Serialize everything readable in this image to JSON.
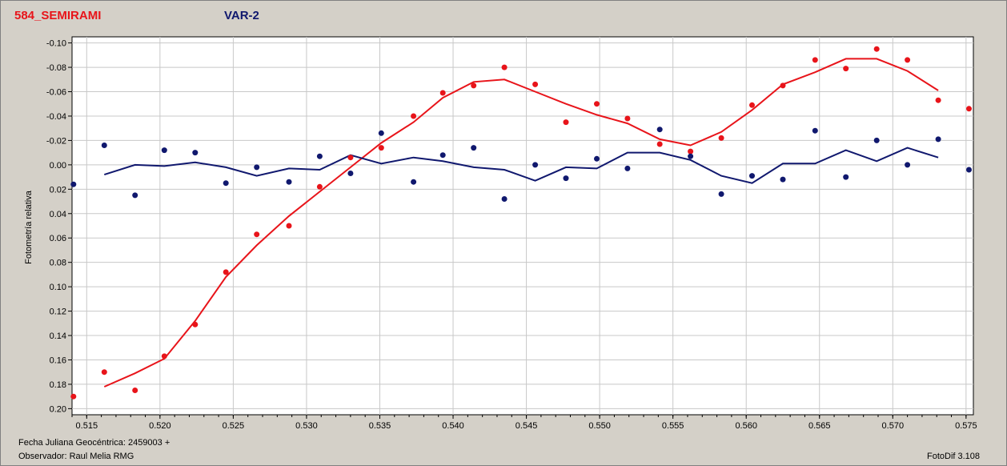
{
  "header": {
    "object_name": "584_SEMIRAMI",
    "comparison_name": "VAR-2"
  },
  "footer": {
    "jd_label": "Fecha Juliana Geocéntrica: 2459003 +",
    "observer_label": "Observador: Raul Melia RMG",
    "software": "FotoDif 3.108"
  },
  "colors": {
    "object": "#e8141a",
    "comparison": "#10186e",
    "background": "#d4d0c8",
    "plot_bg": "#ffffff",
    "grid": "#c8c8c8"
  },
  "chart_data": {
    "type": "scatter",
    "title": "",
    "xlabel": "",
    "ylabel": "Fotometría relativa",
    "xlim": [
      0.514,
      0.5755
    ],
    "ylim": [
      -0.105,
      0.205
    ],
    "y_inverted": true,
    "grid": true,
    "xticks": [
      0.515,
      0.52,
      0.525,
      0.53,
      0.535,
      0.54,
      0.545,
      0.55,
      0.555,
      0.56,
      0.565,
      0.57,
      0.575
    ],
    "xtick_labels": [
      "0.515",
      "0.520",
      "0.525",
      "0.530",
      "0.535",
      "0.540",
      "0.545",
      "0.550",
      "0.555",
      "0.560",
      "0.565",
      "0.570",
      "0.575"
    ],
    "yticks": [
      -0.1,
      -0.08,
      -0.06,
      -0.04,
      -0.02,
      0,
      0.02,
      0.04,
      0.06,
      0.08,
      0.1,
      0.12,
      0.14,
      0.16,
      0.18,
      0.2
    ],
    "ytick_labels": [
      "-0.10",
      "-0.08",
      "-0.06",
      "-0.04",
      "-0.02",
      "0.00",
      "0.02",
      "0.04",
      "0.06",
      "0.08",
      "0.10",
      "0.12",
      "0.14",
      "0.16",
      "0.18",
      "0.20"
    ],
    "series": [
      {
        "name": "584_SEMIRAMI",
        "color": "#e8141a",
        "points": [
          [
            0.5141,
            0.19
          ],
          [
            0.5162,
            0.17
          ],
          [
            0.5183,
            0.185
          ],
          [
            0.5203,
            0.157
          ],
          [
            0.5224,
            0.131
          ],
          [
            0.5245,
            0.088
          ],
          [
            0.5266,
            0.057
          ],
          [
            0.5288,
            0.05
          ],
          [
            0.5309,
            0.018
          ],
          [
            0.533,
            -0.006
          ],
          [
            0.5351,
            -0.014
          ],
          [
            0.5373,
            -0.04
          ],
          [
            0.5393,
            -0.059
          ],
          [
            0.5414,
            -0.065
          ],
          [
            0.5435,
            -0.08
          ],
          [
            0.5456,
            -0.066
          ],
          [
            0.5477,
            -0.035
          ],
          [
            0.5498,
            -0.05
          ],
          [
            0.5519,
            -0.038
          ],
          [
            0.5541,
            -0.017
          ],
          [
            0.5562,
            -0.011
          ],
          [
            0.5583,
            -0.022
          ],
          [
            0.5604,
            -0.049
          ],
          [
            0.5625,
            -0.065
          ],
          [
            0.5647,
            -0.086
          ],
          [
            0.5668,
            -0.079
          ],
          [
            0.5689,
            -0.095
          ],
          [
            0.571,
            -0.086
          ],
          [
            0.5731,
            -0.053
          ],
          [
            0.5752,
            -0.046
          ]
        ],
        "fit": [
          [
            0.5162,
            0.182
          ],
          [
            0.5183,
            0.171
          ],
          [
            0.5203,
            0.159
          ],
          [
            0.5224,
            0.128
          ],
          [
            0.5245,
            0.092
          ],
          [
            0.5266,
            0.066
          ],
          [
            0.5288,
            0.042
          ],
          [
            0.5309,
            0.022
          ],
          [
            0.533,
            0.002
          ],
          [
            0.5351,
            -0.018
          ],
          [
            0.5373,
            -0.035
          ],
          [
            0.5393,
            -0.055
          ],
          [
            0.5414,
            -0.068
          ],
          [
            0.5435,
            -0.07
          ],
          [
            0.5456,
            -0.06
          ],
          [
            0.5477,
            -0.05
          ],
          [
            0.5498,
            -0.041
          ],
          [
            0.5519,
            -0.034
          ],
          [
            0.5541,
            -0.021
          ],
          [
            0.5562,
            -0.016
          ],
          [
            0.5583,
            -0.027
          ],
          [
            0.5604,
            -0.045
          ],
          [
            0.5625,
            -0.066
          ],
          [
            0.5647,
            -0.076
          ],
          [
            0.5668,
            -0.087
          ],
          [
            0.5689,
            -0.087
          ],
          [
            0.571,
            -0.077
          ],
          [
            0.5731,
            -0.061
          ]
        ]
      },
      {
        "name": "VAR-2",
        "color": "#10186e",
        "points": [
          [
            0.5141,
            0.016
          ],
          [
            0.5162,
            -0.016
          ],
          [
            0.5183,
            0.025
          ],
          [
            0.5203,
            -0.012
          ],
          [
            0.5224,
            -0.01
          ],
          [
            0.5245,
            0.015
          ],
          [
            0.5266,
            0.002
          ],
          [
            0.5288,
            0.014
          ],
          [
            0.5309,
            -0.007
          ],
          [
            0.533,
            0.007
          ],
          [
            0.5351,
            -0.026
          ],
          [
            0.5373,
            0.014
          ],
          [
            0.5393,
            -0.008
          ],
          [
            0.5414,
            -0.014
          ],
          [
            0.5435,
            0.028
          ],
          [
            0.5456,
            0.0
          ],
          [
            0.5477,
            0.011
          ],
          [
            0.5498,
            -0.005
          ],
          [
            0.5519,
            0.003
          ],
          [
            0.5541,
            -0.029
          ],
          [
            0.5562,
            -0.007
          ],
          [
            0.5583,
            0.024
          ],
          [
            0.5604,
            0.009
          ],
          [
            0.5625,
            0.012
          ],
          [
            0.5647,
            -0.028
          ],
          [
            0.5668,
            0.01
          ],
          [
            0.5689,
            -0.02
          ],
          [
            0.571,
            0.0
          ],
          [
            0.5731,
            -0.021
          ],
          [
            0.5752,
            0.004
          ]
        ],
        "fit": [
          [
            0.5162,
            0.008
          ],
          [
            0.5183,
            0.0
          ],
          [
            0.5203,
            0.001
          ],
          [
            0.5224,
            -0.002
          ],
          [
            0.5245,
            0.002
          ],
          [
            0.5266,
            0.009
          ],
          [
            0.5288,
            0.003
          ],
          [
            0.5309,
            0.004
          ],
          [
            0.533,
            -0.008
          ],
          [
            0.5351,
            -0.001
          ],
          [
            0.5373,
            -0.006
          ],
          [
            0.5393,
            -0.003
          ],
          [
            0.5414,
            0.002
          ],
          [
            0.5435,
            0.004
          ],
          [
            0.5456,
            0.013
          ],
          [
            0.5477,
            0.002
          ],
          [
            0.5498,
            0.003
          ],
          [
            0.5519,
            -0.01
          ],
          [
            0.5541,
            -0.01
          ],
          [
            0.5562,
            -0.004
          ],
          [
            0.5583,
            0.009
          ],
          [
            0.5604,
            0.015
          ],
          [
            0.5625,
            -0.001
          ],
          [
            0.5647,
            -0.001
          ],
          [
            0.5668,
            -0.012
          ],
          [
            0.5689,
            -0.003
          ],
          [
            0.571,
            -0.014
          ],
          [
            0.5731,
            -0.006
          ]
        ]
      }
    ]
  }
}
